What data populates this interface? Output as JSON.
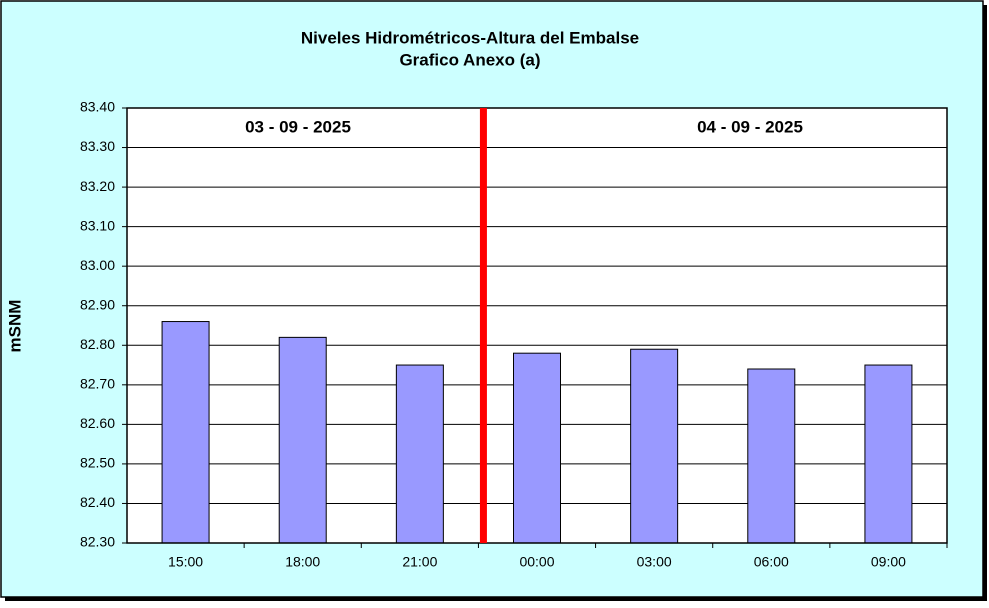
{
  "chart_data": {
    "type": "bar",
    "title": "Niveles Hidrométricos-Altura del Embalse",
    "subtitle": "Grafico Anexo (a)",
    "y_label": "mSNM",
    "annotations": [
      "03 - 09 - 2025",
      "04 - 09 - 2025"
    ],
    "categories": [
      "15:00",
      "18:00",
      "21:00",
      "00:00",
      "03:00",
      "06:00",
      "09:00"
    ],
    "values": [
      82.86,
      82.82,
      82.75,
      82.78,
      82.79,
      82.74,
      82.75
    ],
    "color": "#9999ff",
    "ylim": [
      82.3,
      83.4
    ],
    "yticks": [
      {
        "value": 82.3,
        "label": "82.30"
      },
      {
        "value": 82.4,
        "label": "82.40"
      },
      {
        "value": 82.5,
        "label": "82.50"
      },
      {
        "value": 82.6,
        "label": "82.60"
      },
      {
        "value": 82.7,
        "label": "82.70"
      },
      {
        "value": 82.8,
        "label": "82.80"
      },
      {
        "value": 82.9,
        "label": "82.90"
      },
      {
        "value": 83.0,
        "label": "83.00"
      },
      {
        "value": 83.1,
        "label": "83.10"
      },
      {
        "value": 83.2,
        "label": "83.20"
      },
      {
        "value": 83.3,
        "label": "83.30"
      },
      {
        "value": 83.4,
        "label": "83.40"
      }
    ],
    "grid": true
  }
}
